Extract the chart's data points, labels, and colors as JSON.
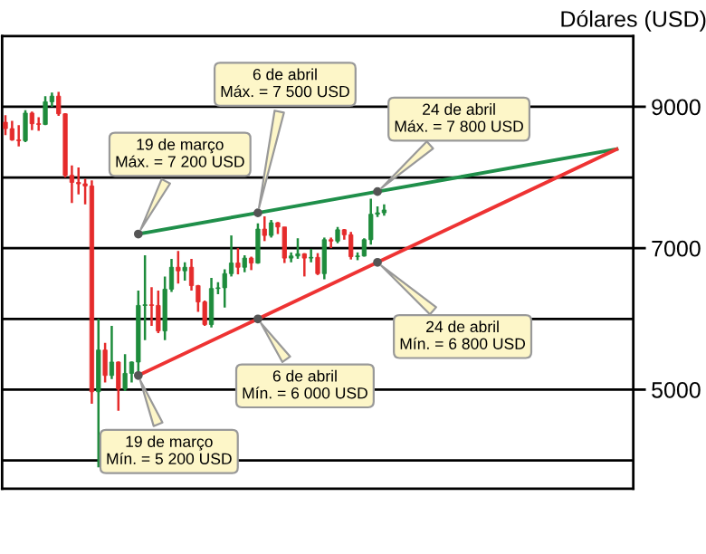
{
  "chart_data": {
    "type": "candlestick",
    "ylabel": "Dólares (USD)",
    "categories": [
      null,
      null,
      null,
      null,
      null,
      null,
      null,
      null,
      null,
      null,
      null,
      null,
      null,
      null,
      null,
      null,
      null,
      null,
      null,
      null,
      null,
      null,
      null,
      null,
      null,
      null,
      null,
      null,
      null,
      null,
      null,
      null,
      null,
      null,
      null,
      null,
      null,
      null,
      null,
      null,
      null,
      null,
      null,
      null,
      null,
      null,
      null,
      null,
      null,
      null,
      null,
      null,
      null,
      null,
      null,
      null,
      null,
      null,
      null,
      null,
      null,
      null,
      null,
      null,
      null,
      null,
      null,
      null,
      null,
      null,
      null,
      null,
      null,
      null,
      null,
      null,
      null,
      null,
      null,
      null,
      null,
      null,
      null,
      null,
      null,
      null,
      null,
      null,
      null,
      null,
      null,
      null,
      null,
      null,
      null
    ],
    "ohlc": [
      [
        8780,
        8880,
        8600,
        8690
      ],
      [
        8690,
        8800,
        8520,
        8530
      ],
      [
        8530,
        8740,
        8440,
        8520
      ],
      [
        8520,
        8950,
        8500,
        8910
      ],
      [
        8910,
        8930,
        8670,
        8760
      ],
      [
        8760,
        8850,
        8660,
        8750
      ],
      [
        8750,
        9150,
        8740,
        9070
      ],
      [
        9070,
        9200,
        9000,
        9150
      ],
      [
        9150,
        9210,
        8870,
        8900
      ],
      [
        8900,
        8910,
        8000,
        8030
      ],
      [
        8030,
        8170,
        7640,
        7930
      ],
      [
        7930,
        8140,
        7760,
        7910
      ],
      [
        7910,
        7980,
        7620,
        7880
      ],
      [
        7880,
        7960,
        4800,
        4970
      ],
      [
        4970,
        6000,
        3900,
        5560
      ],
      [
        5560,
        5660,
        5100,
        5200
      ],
      [
        5200,
        5900,
        5150,
        5390
      ],
      [
        5390,
        5400,
        4700,
        5010
      ],
      [
        5010,
        5500,
        4980,
        5230
      ],
      [
        5230,
        5400,
        5100,
        5390
      ],
      [
        5390,
        6400,
        5200,
        6190
      ],
      [
        6190,
        6900,
        5700,
        6200
      ],
      [
        6200,
        6450,
        5900,
        6190
      ],
      [
        6190,
        6400,
        5800,
        5830
      ],
      [
        5830,
        6600,
        5700,
        6420
      ],
      [
        6420,
        6850,
        6380,
        6730
      ],
      [
        6730,
        6960,
        6500,
        6680
      ],
      [
        6680,
        6800,
        6540,
        6730
      ],
      [
        6730,
        6850,
        6400,
        6470
      ],
      [
        6470,
        6480,
        6100,
        6240
      ],
      [
        6240,
        6260,
        5900,
        5920
      ],
      [
        5920,
        6580,
        5880,
        6430
      ],
      [
        6430,
        6520,
        6350,
        6440
      ],
      [
        6440,
        6700,
        6160,
        6640
      ],
      [
        6640,
        7180,
        6600,
        6790
      ],
      [
        6790,
        7000,
        6630,
        6730
      ],
      [
        6730,
        6900,
        6660,
        6860
      ],
      [
        6860,
        6880,
        6690,
        6790
      ],
      [
        6790,
        7350,
        6780,
        7270
      ],
      [
        7270,
        7450,
        7100,
        7180
      ],
      [
        7180,
        7400,
        7150,
        7360
      ],
      [
        7360,
        7370,
        7200,
        7300
      ],
      [
        7300,
        7300,
        6790,
        6860
      ],
      [
        6860,
        6940,
        6800,
        6890
      ],
      [
        6890,
        7140,
        6850,
        6920
      ],
      [
        6920,
        6930,
        6600,
        6860
      ],
      [
        6860,
        6990,
        6800,
        6870
      ],
      [
        6870,
        6930,
        6620,
        6640
      ],
      [
        6640,
        7150,
        6560,
        7120
      ],
      [
        7120,
        7150,
        7000,
        7100
      ],
      [
        7100,
        7300,
        7070,
        7260
      ],
      [
        7260,
        7270,
        7120,
        7190
      ],
      [
        7190,
        7230,
        6840,
        6880
      ],
      [
        6880,
        6940,
        6830,
        6890
      ],
      [
        6890,
        7140,
        6880,
        7120
      ],
      [
        7120,
        7700,
        7050,
        7480
      ],
      [
        7480,
        7590,
        7440,
        7500
      ],
      [
        7500,
        7620,
        7460,
        7540
      ],
      null,
      null,
      null,
      null,
      null,
      null,
      null,
      null,
      null,
      null,
      null,
      null,
      null,
      null,
      null,
      null,
      null,
      null,
      null,
      null,
      null,
      null,
      null,
      null,
      null,
      null,
      null,
      null,
      null,
      null,
      null,
      null,
      null,
      null,
      null,
      null,
      null
    ],
    "colors": [
      "#e52b2b",
      "#e52b2b",
      "#e52b2b",
      "#1e8c3c",
      "#e52b2b",
      "#e52b2b",
      "#1e8c3c",
      "#1e8c3c",
      "#e52b2b",
      "#e52b2b",
      "#e52b2b",
      "#e52b2b",
      "#e52b2b",
      "#e52b2b",
      "#1e8c3c",
      "#e52b2b",
      "#1e8c3c",
      "#e52b2b",
      "#1e8c3c",
      "#1e8c3c",
      "#1e8c3c",
      "#1e8c3c",
      "#e52b2b",
      "#e52b2b",
      "#1e8c3c",
      "#1e8c3c",
      "#e52b2b",
      "#1e8c3c",
      "#e52b2b",
      "#e52b2b",
      "#e52b2b",
      "#1e8c3c",
      "#1e8c3c",
      "#1e8c3c",
      "#1e8c3c",
      "#e52b2b",
      "#1e8c3c",
      "#e52b2b",
      "#1e8c3c",
      "#e52b2b",
      "#1e8c3c",
      "#e52b2b",
      "#e52b2b",
      "#1e8c3c",
      "#1e8c3c",
      "#e52b2b",
      "#1e8c3c",
      "#e52b2b",
      "#1e8c3c",
      "#e52b2b",
      "#1e8c3c",
      "#e52b2b",
      "#e52b2b",
      "#1e8c3c",
      "#1e8c3c",
      "#1e8c3c",
      "#1e8c3c",
      "#1e8c3c",
      null,
      null,
      null,
      null,
      null,
      null,
      null,
      null,
      null,
      null,
      null,
      null,
      null,
      null,
      null,
      null,
      null,
      null,
      null,
      null,
      null,
      null,
      null,
      null,
      null,
      null,
      null,
      null,
      null,
      null,
      null,
      null,
      null,
      null,
      null,
      null,
      null
    ],
    "series": [
      {
        "type": "line",
        "color": "#1f8f4a",
        "values": [
          null,
          null,
          null,
          null,
          null,
          null,
          null,
          null,
          null,
          null,
          null,
          null,
          null,
          null,
          null,
          null,
          null,
          null,
          null,
          null,
          7200,
          null,
          null,
          null,
          null,
          null,
          null,
          null,
          null,
          null,
          null,
          null,
          null,
          null,
          null,
          null,
          null,
          null,
          7500,
          null,
          null,
          null,
          null,
          null,
          null,
          null,
          null,
          null,
          null,
          null,
          null,
          null,
          null,
          null,
          null,
          null,
          7800,
          null,
          null,
          null,
          null,
          null,
          null,
          null,
          null,
          null,
          null,
          null,
          null,
          null,
          null,
          null,
          null,
          null,
          null,
          null,
          null,
          null,
          null,
          null,
          null,
          null,
          null,
          null,
          null,
          null,
          null,
          null,
          null,
          null,
          null,
          null,
          8400,
          null,
          null
        ]
      },
      {
        "type": "line",
        "color": "#ee3333",
        "values": [
          null,
          null,
          null,
          null,
          null,
          null,
          null,
          null,
          null,
          null,
          null,
          null,
          null,
          null,
          null,
          null,
          null,
          null,
          null,
          null,
          5200,
          null,
          null,
          null,
          null,
          null,
          null,
          null,
          null,
          null,
          null,
          null,
          null,
          null,
          null,
          null,
          null,
          null,
          6000,
          null,
          null,
          null,
          null,
          null,
          null,
          null,
          null,
          null,
          null,
          null,
          null,
          null,
          null,
          null,
          null,
          null,
          6800,
          null,
          null,
          null,
          null,
          null,
          null,
          null,
          null,
          null,
          null,
          null,
          null,
          null,
          null,
          null,
          null,
          null,
          null,
          null,
          null,
          null,
          null,
          null,
          null,
          null,
          null,
          null,
          null,
          null,
          null,
          null,
          null,
          null,
          null,
          null,
          8400,
          null,
          null
        ]
      }
    ],
    "annotations": [
      "19 de março\nMáx. = 7 200 USD",
      "6 de abril\nMáx. = 7 500 USD",
      "24 de abril\nMáx. = 7 800 USD",
      "19 de março\nMín. = 5 200 USD",
      "6 de abril\nMín. = 6 000 USD",
      "24 de abril\nMín. = 6 800 USD"
    ],
    "ylim": [
      3600,
      10000
    ],
    "yticks": [
      {
        "value": 4000,
        "label": null
      },
      5000,
      {
        "value": 6000,
        "label": null
      },
      7000,
      {
        "value": 8000,
        "label": null
      },
      9000
    ],
    "grid": "y",
    "tick_labels": "y",
    "line_style": "solid",
    "marker": "none"
  }
}
